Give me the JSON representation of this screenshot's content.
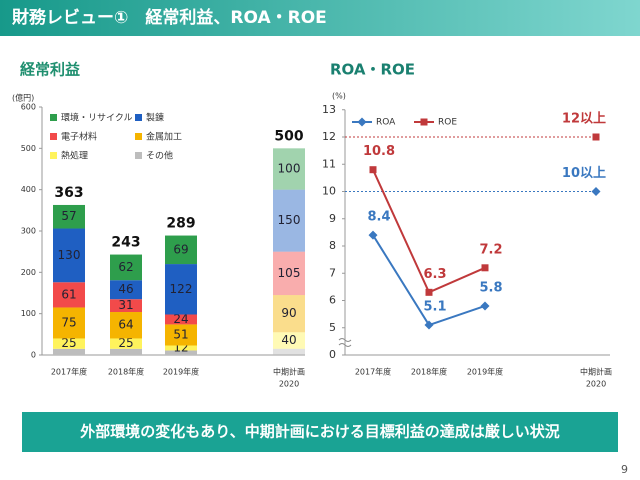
{
  "header": {
    "title": "財務レビュー①　経常利益、ROA・ROE"
  },
  "chart_data": [
    {
      "type": "bar",
      "stacked": true,
      "title": "経常利益",
      "y_label": "(億円)",
      "categories": [
        [
          "2017年度"
        ],
        [
          "2018年度"
        ],
        [
          "2019年度"
        ],
        [
          "中期計画",
          "2020"
        ]
      ],
      "planned": [
        false,
        false,
        false,
        true
      ],
      "ylim": [
        0,
        600
      ],
      "yticks": [
        0,
        100,
        200,
        300,
        400,
        500,
        600
      ],
      "totals": [
        363,
        243,
        289,
        500
      ],
      "series": [
        {
          "name": "環境・リサイクル",
          "color": "#2e9e4c",
          "values": [
            57,
            62,
            69,
            100
          ],
          "show_labels": true
        },
        {
          "name": "製錬",
          "color": "#1f5fc2",
          "values": [
            130,
            46,
            122,
            150
          ],
          "show_labels": true
        },
        {
          "name": "電子材料",
          "color": "#f24a4a",
          "values": [
            61,
            31,
            24,
            105
          ],
          "show_labels": true
        },
        {
          "name": "金属加工",
          "color": "#f5b400",
          "values": [
            75,
            64,
            51,
            90
          ],
          "show_labels": true
        },
        {
          "name": "熱処理",
          "color": "#fff35c",
          "values": [
            25,
            25,
            12,
            40
          ],
          "show_labels": true
        },
        {
          "name": "その他",
          "color": "#bdbdbd",
          "values": [
            15,
            15,
            11,
            15
          ],
          "show_labels": false
        }
      ]
    },
    {
      "type": "line",
      "title": "ROA・ROE",
      "y_label": "(%)",
      "categories": [
        [
          "2017年度"
        ],
        [
          "2018年度"
        ],
        [
          "2019年度"
        ],
        [
          "中期計画",
          "2020"
        ]
      ],
      "ylim": [
        0,
        13
      ],
      "axis_break": [
        0,
        5
      ],
      "yticks": [
        0,
        5,
        6,
        7,
        8,
        9,
        10,
        11,
        12,
        13
      ],
      "series": [
        {
          "name": "ROA",
          "color": "#3a78c0",
          "marker": "diamond",
          "values": [
            8.4,
            5.1,
            5.8,
            null
          ],
          "target": 10,
          "target_label": "10以上"
        },
        {
          "name": "ROE",
          "color": "#c0393b",
          "marker": "square",
          "values": [
            10.8,
            6.3,
            7.2,
            null
          ],
          "target": 12,
          "target_label": "12以上"
        }
      ]
    }
  ],
  "banner": "外部環境の変化もあり、中期計画における目標利益の達成は厳しい状況",
  "page_number": "9"
}
